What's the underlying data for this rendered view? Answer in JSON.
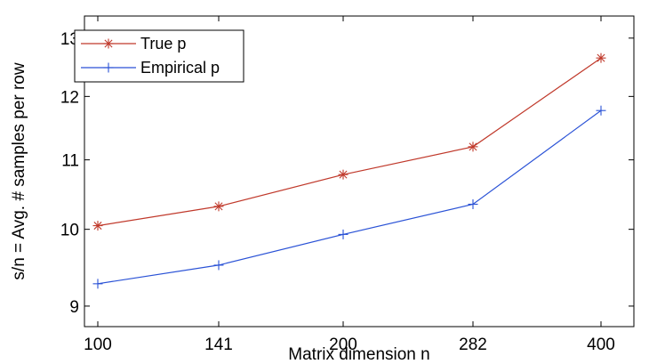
{
  "chart_data": {
    "type": "line",
    "xlabel": "Matrix dimension n",
    "ylabel": "s/n = Avg. # samples per row",
    "categories": [
      "100",
      "141",
      "200",
      "282",
      "400"
    ],
    "x": [
      100,
      141,
      200,
      282,
      400
    ],
    "xscale": "log",
    "yscale": "log",
    "ylim": [
      8.75,
      13.4
    ],
    "yticks": [
      9,
      10,
      11,
      12,
      13
    ],
    "ytick_labels": [
      "9",
      "10",
      "11",
      "12",
      "13"
    ],
    "grid": false,
    "legend_position": "top-left",
    "series": [
      {
        "name": "True p",
        "values": [
          10.05,
          10.32,
          10.78,
          11.2,
          12.65
        ],
        "color": "#c0392b",
        "marker": "asterisk"
      },
      {
        "name": "Empirical p",
        "values": [
          9.28,
          9.52,
          9.93,
          10.35,
          11.77
        ],
        "color": "#2a52d6",
        "marker": "plus"
      }
    ]
  }
}
